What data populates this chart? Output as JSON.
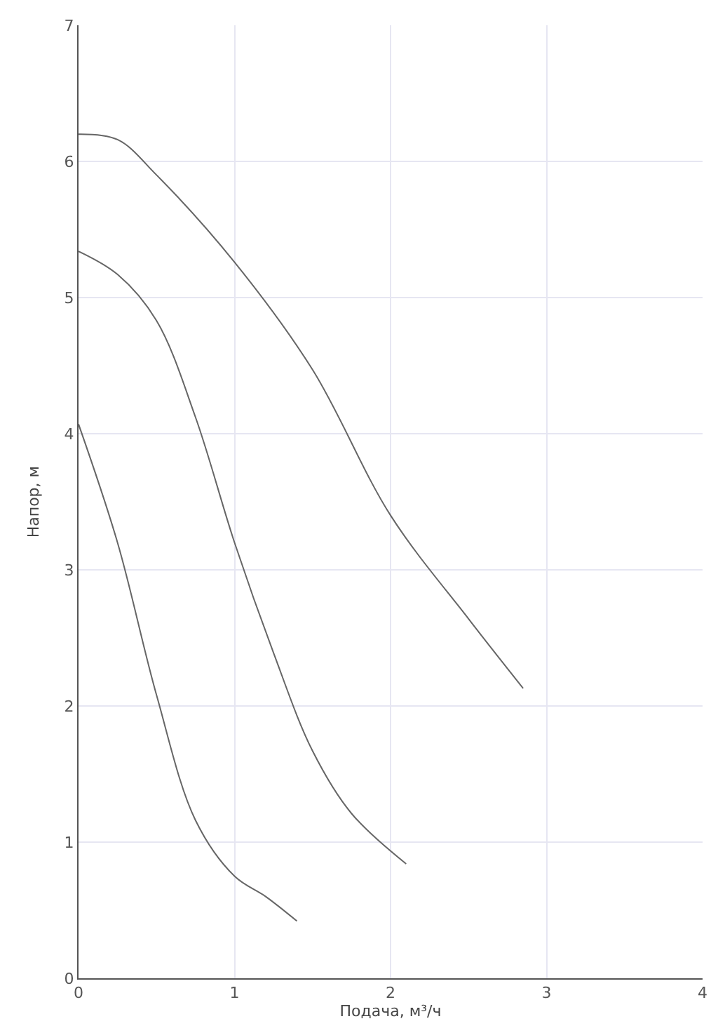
{
  "chart_data": {
    "type": "line",
    "xlabel": "Подача, м³/ч",
    "ylabel": "Напор, м",
    "xlim": [
      0,
      4
    ],
    "xticks": [
      0,
      1,
      2,
      3,
      4
    ],
    "ylim": [
      0,
      7
    ],
    "yticks": [
      0,
      1,
      2,
      3,
      4,
      5,
      6,
      7
    ],
    "grid": true,
    "series": [
      {
        "color": "#666666",
        "x": [
          0,
          0.25,
          0.5,
          1,
          1.5,
          2,
          2.5,
          2.85
        ],
        "values": [
          6.2,
          6.16,
          5.9,
          5.26,
          4.47,
          3.4,
          2.64,
          2.13
        ]
      },
      {
        "color": "#666666",
        "x": [
          0,
          0.25,
          0.5,
          0.75,
          1,
          1.25,
          1.5,
          1.75,
          2.1
        ],
        "values": [
          5.34,
          5.17,
          4.83,
          4.12,
          3.2,
          2.39,
          1.67,
          1.21,
          0.84
        ]
      },
      {
        "color": "#666666",
        "x": [
          0,
          0.25,
          0.5,
          0.75,
          1,
          1.2,
          1.4
        ],
        "values": [
          4.07,
          3.2,
          2.08,
          1.16,
          0.75,
          0.6,
          0.42
        ]
      }
    ]
  }
}
